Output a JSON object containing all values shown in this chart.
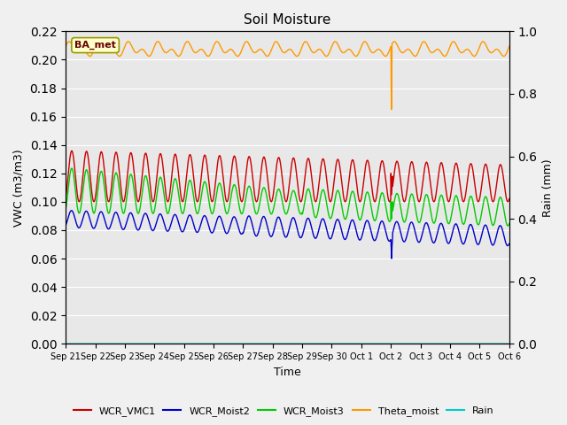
{
  "title": "Soil Moisture",
  "xlabel": "Time",
  "ylabel_left": "VWC (m3/m3)",
  "ylabel_right": "Rain (mm)",
  "ylim_left": [
    0.0,
    0.22
  ],
  "ylim_right": [
    0.0,
    1.0
  ],
  "bg_color": "#e8e8e8",
  "fig_color": "#f0f0f0",
  "station_label": "BA_met",
  "x_tick_labels": [
    "Sep 21",
    "Sep 22",
    "Sep 23",
    "Sep 24",
    "Sep 25",
    "Sep 26",
    "Sep 27",
    "Sep 28",
    "Sep 29",
    "Sep 30",
    "Oct 1",
    "Oct 2",
    "Oct 3",
    "Oct 4",
    "Oct 5",
    "Oct 6"
  ],
  "legend_entries": [
    "WCR_VMC1",
    "WCR_Moist2",
    "WCR_Moist3",
    "Theta_moist",
    "Rain"
  ],
  "legend_colors": [
    "#cc0000",
    "#0000cc",
    "#00cc00",
    "#ff9900",
    "#00cccc"
  ],
  "freq_per_day": 2.0,
  "n_points": 2000
}
